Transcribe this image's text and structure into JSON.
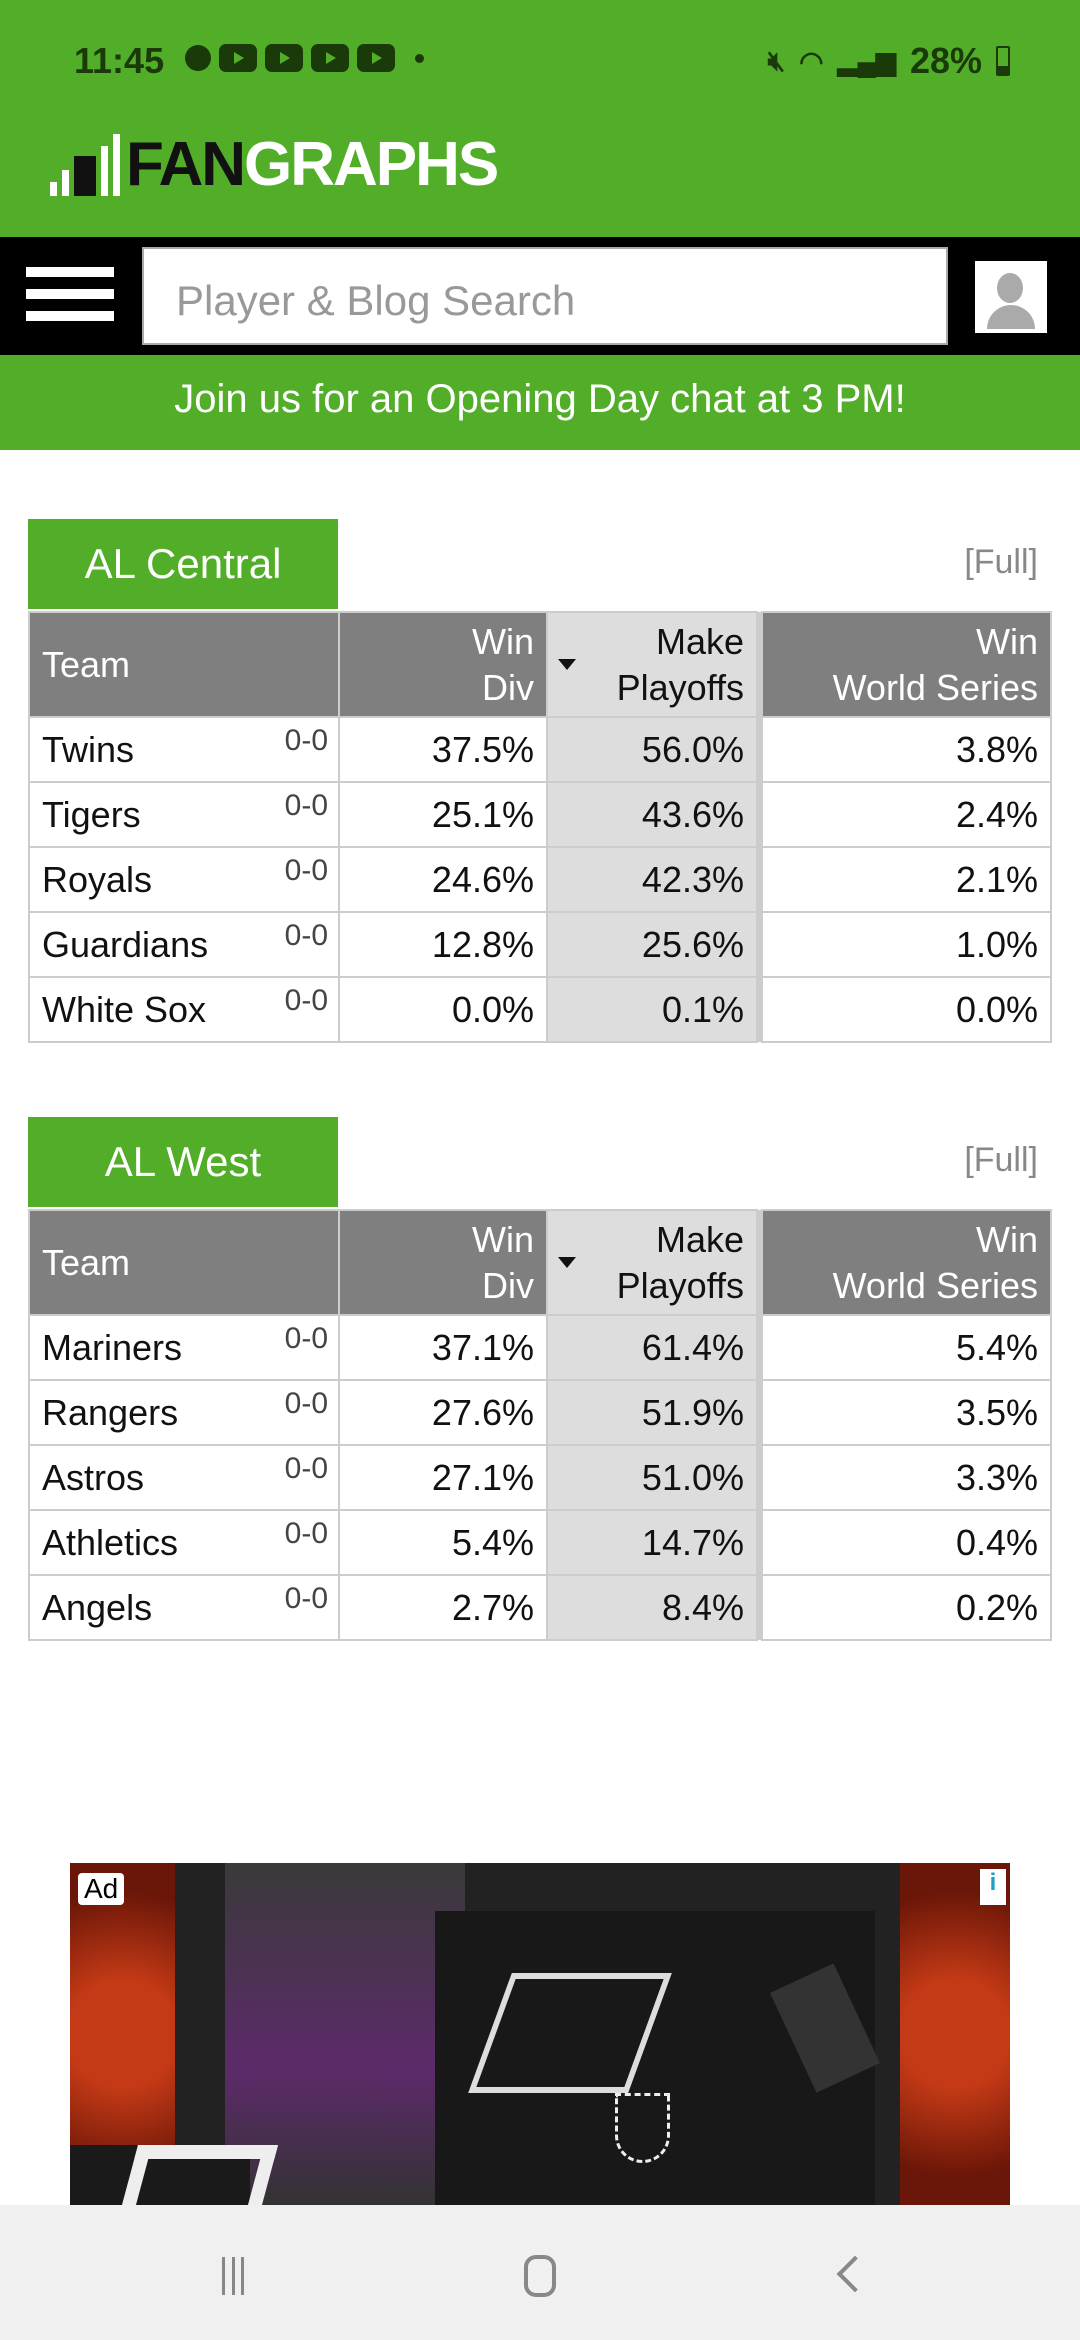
{
  "status_bar": {
    "time": "11:45",
    "battery": "28%",
    "notification_icons": [
      "chat-icon",
      "youtube-icon",
      "youtube-icon",
      "youtube-icon",
      "youtube-icon"
    ],
    "right_icons": [
      "mute-icon",
      "wifi-icon",
      "signal-icon",
      "battery-icon"
    ]
  },
  "header": {
    "logo_fan": "FAN",
    "logo_graphs": "GRAPHS"
  },
  "nav": {
    "search_placeholder": "Player & Blog Search"
  },
  "banner": "Join us for an Opening Day chat at 3 PM!",
  "colors": {
    "brand_green": "#52ad28",
    "header_gray": "#7f7f7f",
    "sorted_col": "#dddddd"
  },
  "columns": {
    "team": "Team",
    "win_div_1": "Win",
    "win_div_2": "Div",
    "make_playoffs_1": "Make",
    "make_playoffs_2": "Playoffs",
    "win_ws_1": "Win",
    "win_ws_2": "World Series"
  },
  "divisions": [
    {
      "name": "AL Central",
      "full_link": "[Full]",
      "rows": [
        {
          "team": "Twins",
          "record": "0-0",
          "win_div": "37.5%",
          "make_playoffs": "56.0%",
          "win_ws": "3.8%"
        },
        {
          "team": "Tigers",
          "record": "0-0",
          "win_div": "25.1%",
          "make_playoffs": "43.6%",
          "win_ws": "2.4%"
        },
        {
          "team": "Royals",
          "record": "0-0",
          "win_div": "24.6%",
          "make_playoffs": "42.3%",
          "win_ws": "2.1%"
        },
        {
          "team": "Guardians",
          "record": "0-0",
          "win_div": "12.8%",
          "make_playoffs": "25.6%",
          "win_ws": "1.0%"
        },
        {
          "team": "White Sox",
          "record": "0-0",
          "win_div": "0.0%",
          "make_playoffs": "0.1%",
          "win_ws": "0.0%"
        }
      ]
    },
    {
      "name": "AL West",
      "full_link": "[Full]",
      "rows": [
        {
          "team": "Mariners",
          "record": "0-0",
          "win_div": "37.1%",
          "make_playoffs": "61.4%",
          "win_ws": "5.4%"
        },
        {
          "team": "Rangers",
          "record": "0-0",
          "win_div": "27.6%",
          "make_playoffs": "51.9%",
          "win_ws": "3.5%"
        },
        {
          "team": "Astros",
          "record": "0-0",
          "win_div": "27.1%",
          "make_playoffs": "51.0%",
          "win_ws": "3.3%"
        },
        {
          "team": "Athletics",
          "record": "0-0",
          "win_div": "5.4%",
          "make_playoffs": "14.7%",
          "win_ws": "0.4%"
        },
        {
          "team": "Angels",
          "record": "0-0",
          "win_div": "2.7%",
          "make_playoffs": "8.4%",
          "win_ws": "0.2%"
        }
      ]
    }
  ],
  "ad": {
    "label": "Ad",
    "choices": "i"
  }
}
